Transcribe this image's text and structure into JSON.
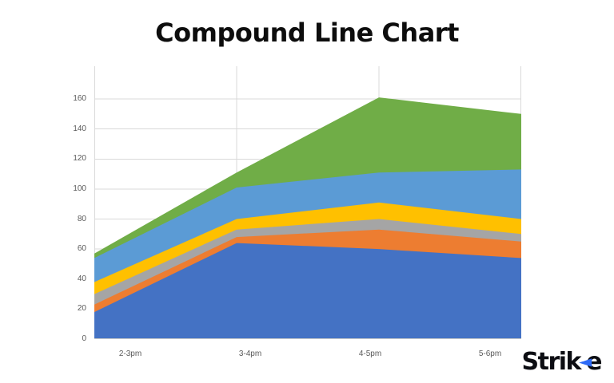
{
  "title": "Compound Line Chart",
  "logo": {
    "text_before": "Strik",
    "text_after": "e",
    "arrow_icon": "◄",
    "arrow_color": "#2e6bf7",
    "text_color": "#0c0d12"
  },
  "chart_data": {
    "type": "area",
    "stacked": true,
    "title": "Compound Line Chart",
    "categories": [
      "2-3pm",
      "3-4pm",
      "4-5pm",
      "5-6pm"
    ],
    "series": [
      {
        "name": "blue",
        "color": "#4472C4",
        "values": [
          18,
          64,
          60,
          54
        ]
      },
      {
        "name": "orange",
        "color": "#ED7D31",
        "values": [
          5,
          4,
          13,
          11
        ]
      },
      {
        "name": "gray",
        "color": "#A5A5A5",
        "values": [
          7,
          5,
          7,
          5
        ]
      },
      {
        "name": "yellow",
        "color": "#FFC000",
        "values": [
          8,
          7,
          11,
          10
        ]
      },
      {
        "name": "light-blue",
        "color": "#5B9BD5",
        "values": [
          16,
          21,
          20,
          33
        ]
      },
      {
        "name": "green",
        "color": "#70AD47",
        "values": [
          3,
          10,
          50,
          37
        ]
      }
    ],
    "stacked_totals": [
      57,
      111,
      161,
      150
    ],
    "xlabel": "",
    "ylabel": "",
    "ylim": [
      0,
      160
    ],
    "ytick_step": 20,
    "yticks": [
      "0",
      "20",
      "40",
      "60",
      "80",
      "100",
      "120",
      "140",
      "160"
    ],
    "grid": true,
    "gridline_color": "#D9D9D9",
    "tick_label_color": "#595959",
    "legend": "none"
  }
}
